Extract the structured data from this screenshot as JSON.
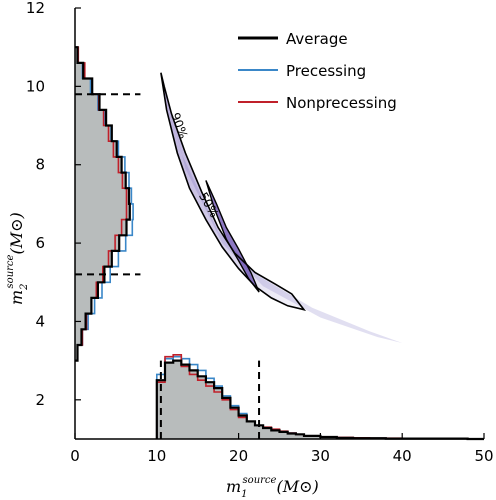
{
  "chart_data": {
    "type": "scatter",
    "title": "",
    "xlabel": "m",
    "xlabel_sub": "1",
    "xlabel_sup": "source",
    "xlabel_unit": "(M⊙)",
    "ylabel": "m",
    "ylabel_sub": "2",
    "ylabel_sup": "source",
    "ylabel_unit": "(M⊙)",
    "xlim": [
      0,
      50
    ],
    "ylim": [
      1,
      12
    ],
    "xticks": [
      "0",
      "10",
      "20",
      "30",
      "40",
      "50"
    ],
    "yticks": [
      "2",
      "4",
      "6",
      "8",
      "10",
      "12"
    ],
    "xtick_values": [
      0,
      10,
      20,
      30,
      40,
      50
    ],
    "ytick_values": [
      2,
      4,
      6,
      8,
      10,
      12
    ],
    "legend": {
      "placement": "top-right",
      "entries": [
        {
          "label": "Average",
          "color": "#000000"
        },
        {
          "label": "Precessing",
          "color": "#3a87c8"
        },
        {
          "label": "Nonprecessing",
          "color": "#c0202a"
        }
      ]
    },
    "contour_labels": [
      "90%",
      "50%"
    ],
    "m1_interval": [
      10.5,
      22.5
    ],
    "m2_interval": [
      5.2,
      9.8
    ],
    "m1_histogram": {
      "bin_edges": [
        10,
        11,
        12,
        13,
        14,
        15,
        16,
        17,
        18,
        19,
        20,
        21,
        22,
        23,
        24,
        25,
        26,
        27,
        28,
        30,
        32,
        34,
        36,
        38,
        40,
        42,
        44,
        46,
        48,
        50
      ],
      "average": [
        2.5,
        2.95,
        3.0,
        2.9,
        2.75,
        2.6,
        2.45,
        2.3,
        2.05,
        1.8,
        1.6,
        1.45,
        1.35,
        1.28,
        1.22,
        1.18,
        1.14,
        1.12,
        1.08,
        1.05,
        1.03,
        1.02,
        1.02,
        1.01,
        1.01,
        1.01,
        1.01,
        1.01,
        1.0
      ],
      "precessing": [
        2.65,
        3.05,
        3.1,
        3.05,
        2.9,
        2.75,
        2.55,
        2.35,
        2.1,
        1.85,
        1.65,
        1.45,
        1.35,
        1.28,
        1.22,
        1.18,
        1.15,
        1.12,
        1.08,
        1.05,
        1.03,
        1.02,
        1.02,
        1.01,
        1.01,
        1.01,
        1.01,
        1.01,
        1.0
      ],
      "nonprecessing": [
        2.45,
        3.1,
        3.15,
        2.85,
        2.65,
        2.5,
        2.35,
        2.2,
        2.0,
        1.75,
        1.55,
        1.45,
        1.35,
        1.3,
        1.25,
        1.2,
        1.15,
        1.12,
        1.08,
        1.05,
        1.04,
        1.03,
        1.02,
        1.02,
        1.01,
        1.01,
        1.01,
        1.01,
        1.0
      ]
    },
    "m2_histogram": {
      "bin_edges": [
        3.0,
        3.4,
        3.8,
        4.2,
        4.6,
        5.0,
        5.4,
        5.8,
        6.2,
        6.6,
        7.0,
        7.4,
        7.8,
        8.2,
        8.6,
        9.0,
        9.4,
        9.8,
        10.2,
        10.6,
        11.0
      ],
      "average": [
        0.3,
        0.8,
        1.3,
        2.0,
        2.8,
        3.6,
        4.5,
        5.4,
        6.3,
        6.7,
        6.6,
        6.2,
        5.7,
        5.1,
        4.5,
        3.8,
        3.0,
        2.1,
        1.0,
        0.3
      ],
      "precessing": [
        0.3,
        0.9,
        1.6,
        2.4,
        3.3,
        4.3,
        5.3,
        6.2,
        7.0,
        7.1,
        6.9,
        6.6,
        6.1,
        5.3,
        4.4,
        3.6,
        2.8,
        1.9,
        0.9,
        0.3
      ],
      "nonprecessing": [
        0.3,
        0.9,
        1.4,
        2.0,
        2.6,
        3.4,
        4.1,
        4.9,
        5.7,
        6.3,
        6.3,
        5.8,
        5.3,
        4.7,
        4.1,
        3.5,
        2.9,
        2.1,
        1.2,
        0.4
      ]
    },
    "m2_hist_xrange": [
      0,
      8
    ],
    "posterior_curve": {
      "upper": [
        [
          10.5,
          10.35
        ],
        [
          11.2,
          9.4
        ],
        [
          12.5,
          8.3
        ],
        [
          14.0,
          7.4
        ],
        [
          16.0,
          6.6
        ],
        [
          18.0,
          5.9
        ],
        [
          20.0,
          5.35
        ],
        [
          22.0,
          4.9
        ],
        [
          24.0,
          4.6
        ],
        [
          26.0,
          4.4
        ],
        [
          28.0,
          4.3
        ]
      ],
      "lower": [
        [
          28.0,
          4.3
        ],
        [
          26.5,
          4.7
        ],
        [
          24.5,
          4.95
        ],
        [
          22.0,
          5.25
        ],
        [
          19.5,
          5.75
        ],
        [
          17.5,
          6.4
        ],
        [
          15.5,
          7.3
        ],
        [
          13.5,
          8.3
        ],
        [
          11.8,
          9.3
        ],
        [
          10.9,
          10.0
        ],
        [
          10.5,
          10.35
        ]
      ],
      "inner_upper": [
        [
          16.0,
          7.6
        ],
        [
          17.0,
          6.9
        ],
        [
          18.5,
          6.1
        ],
        [
          20.0,
          5.55
        ],
        [
          21.2,
          5.1
        ],
        [
          22.5,
          4.75
        ]
      ],
      "inner_lower": [
        [
          22.5,
          4.75
        ],
        [
          21.5,
          5.25
        ],
        [
          20.0,
          5.85
        ],
        [
          18.5,
          6.4
        ],
        [
          17.3,
          7.0
        ],
        [
          16.0,
          7.6
        ]
      ],
      "faint_upper": [
        [
          10.7,
          10.3
        ],
        [
          13.5,
          7.9
        ],
        [
          18.0,
          6.0
        ],
        [
          23.0,
          4.9
        ],
        [
          30.0,
          4.1
        ],
        [
          37.0,
          3.6
        ],
        [
          40.0,
          3.45
        ]
      ],
      "faint_lower": [
        [
          40.0,
          3.45
        ],
        [
          36.0,
          3.75
        ],
        [
          29.0,
          4.35
        ],
        [
          22.5,
          5.15
        ],
        [
          17.5,
          6.3
        ],
        [
          13.0,
          8.3
        ],
        [
          10.9,
          10.1
        ]
      ]
    },
    "colors": {
      "average": "#000000",
      "precessing": "#3a87c8",
      "nonprecessing": "#c0202a",
      "hist_fill": "#b8bcbc",
      "density": "#5b3fa8"
    }
  }
}
